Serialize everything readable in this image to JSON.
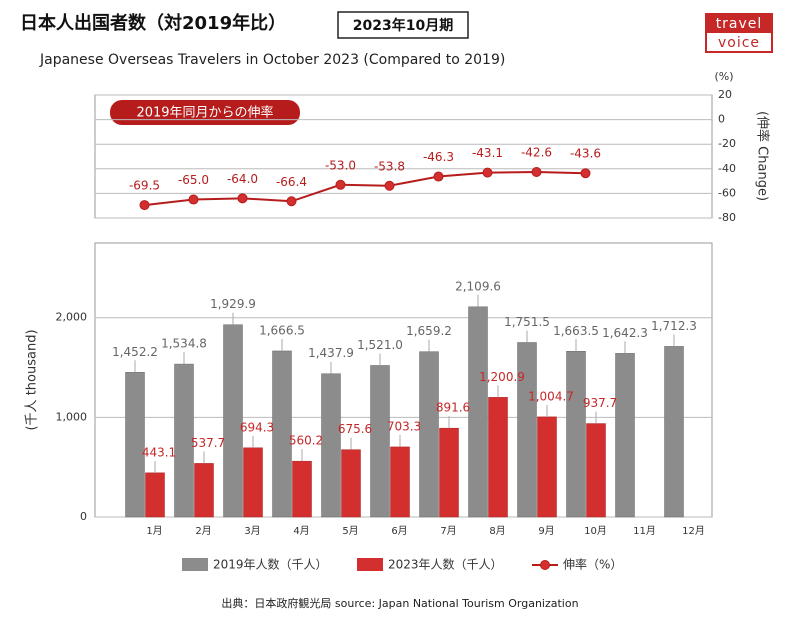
{
  "header": {
    "title": "日本人出国者数（対2019年比）",
    "period": "2023年10月期",
    "subtitle": "Japanese Overseas Travelers in October 2023 (Compared to 2019)"
  },
  "logo": [
    "travel",
    "voice"
  ],
  "chart_data": [
    {
      "type": "line",
      "title": "2019年同月からの伸率",
      "unit": "(%)",
      "ylabel": "(伸率 Change)",
      "categories": [
        "1月",
        "2月",
        "3月",
        "4月",
        "5月",
        "6月",
        "7月",
        "8月",
        "9月",
        "10月",
        "11月",
        "12月"
      ],
      "series": [
        {
          "name": "伸率（%）",
          "color": "#b71c1c",
          "values": [
            -69.5,
            -65.0,
            -64.0,
            -66.4,
            -53.0,
            -53.8,
            -46.3,
            -43.1,
            -42.6,
            -43.6,
            null,
            null
          ],
          "value_labels": [
            "-69.5",
            "-65.0",
            "-64.0",
            "-66.4",
            "-53.0",
            "-53.8",
            "-46.3",
            "-43.1",
            "-42.6",
            "-43.6",
            null,
            null
          ]
        }
      ],
      "ylim": [
        -80,
        20
      ],
      "yticks": [
        20,
        0,
        -20,
        -40,
        -60,
        -80
      ],
      "grid": true
    },
    {
      "type": "bar",
      "ylabel": "(千人 thousand)",
      "categories": [
        "1月",
        "2月",
        "3月",
        "4月",
        "5月",
        "6月",
        "7月",
        "8月",
        "9月",
        "10月",
        "11月",
        "12月"
      ],
      "series": [
        {
          "name": "2019年人数（千人）",
          "color": "#8c8c8c",
          "values": [
            1452.2,
            1534.8,
            1929.9,
            1666.5,
            1437.9,
            1521.0,
            1659.2,
            2109.6,
            1751.5,
            1663.5,
            1642.3,
            1712.3
          ],
          "value_labels": [
            "1,452.2",
            "1,534.8",
            "1,929.9",
            "1,666.5",
            "1,437.9",
            "1,521.0",
            "1,659.2",
            "2,109.6",
            "1,751.5",
            "1,663.5",
            "1,642.3",
            "1,712.3"
          ]
        },
        {
          "name": "2023年人数（千人）",
          "color": "#d32f2f",
          "values": [
            443.1,
            537.7,
            694.3,
            560.2,
            675.6,
            703.3,
            891.6,
            1200.9,
            1004.7,
            937.7,
            null,
            null
          ],
          "value_labels": [
            "443.1",
            "537.7",
            "694.3",
            "560.2",
            "675.6",
            "703.3",
            "891.6",
            "1,200.9",
            "1,004.7",
            "937.7",
            null,
            null
          ]
        }
      ],
      "ylim": [
        0,
        2750
      ],
      "yticks": [
        0,
        {
          "value": 1000,
          "label": "1,000"
        },
        {
          "value": 2000,
          "label": "2,000"
        }
      ],
      "grid": true
    }
  ],
  "source": "出典：日本政府観光局  source: Japan National Tourism Organization"
}
